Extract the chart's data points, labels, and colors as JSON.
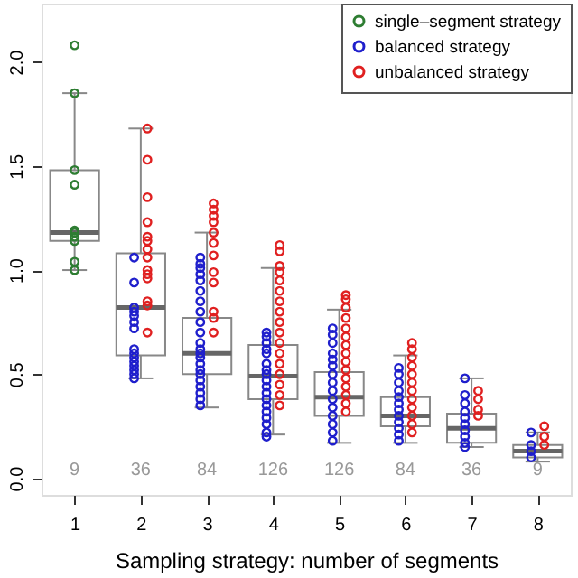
{
  "chart_data": {
    "type": "box",
    "xlabel": "Sampling strategy: number of segments",
    "xlim": [
      0.5,
      8.5
    ],
    "xticks": [
      1,
      2,
      3,
      4,
      5,
      6,
      7,
      8
    ],
    "ylim": [
      -0.08,
      2.28
    ],
    "yticks": [
      {
        "value": 0,
        "label": "0.0"
      },
      {
        "value": 0.5,
        "label": "0.5"
      },
      {
        "value": 1,
        "label": "1.0"
      },
      {
        "value": 1.5,
        "label": "1.5"
      },
      {
        "value": 2,
        "label": "2.0"
      }
    ],
    "x": [
      1,
      2,
      3,
      4,
      5,
      6,
      7,
      8
    ],
    "boxes": [
      {
        "low": 1.0,
        "q1": 1.14,
        "median": 1.18,
        "q3": 1.48,
        "high": 1.85
      },
      {
        "low": 0.48,
        "q1": 0.59,
        "median": 0.82,
        "q3": 1.08,
        "high": 1.68
      },
      {
        "low": 0.34,
        "q1": 0.5,
        "median": 0.6,
        "q3": 0.77,
        "high": 1.18
      },
      {
        "low": 0.21,
        "q1": 0.38,
        "median": 0.49,
        "q3": 0.64,
        "high": 1.01
      },
      {
        "low": 0.17,
        "q1": 0.3,
        "median": 0.39,
        "q3": 0.51,
        "high": 0.81
      },
      {
        "low": 0.17,
        "q1": 0.25,
        "median": 0.3,
        "q3": 0.39,
        "high": 0.59
      },
      {
        "low": 0.15,
        "q1": 0.17,
        "median": 0.24,
        "q3": 0.31,
        "high": 0.48
      },
      {
        "low": 0.08,
        "q1": 0.1,
        "median": 0.13,
        "q3": 0.16,
        "high": 0.22
      }
    ],
    "series": [
      {
        "name": "single–segment strategy",
        "type": "scatter",
        "color": "#2e7d32",
        "x": [
          1,
          1,
          1,
          1,
          1,
          1,
          1,
          1,
          1,
          1
        ],
        "values": [
          2.08,
          1.85,
          1.48,
          1.41,
          1.19,
          1.18,
          1.16,
          1.14,
          1.04,
          1.0
        ]
      },
      {
        "name": "balanced strategy",
        "type": "scatter",
        "color": "#1f1fcc",
        "x": [
          1.9,
          1.9,
          1.9,
          1.9,
          1.9,
          1.9,
          1.9,
          1.9,
          1.9,
          1.9,
          1.9,
          1.9,
          1.9,
          1.9,
          1.9,
          2.9,
          2.9,
          2.9,
          2.9,
          2.9,
          2.9,
          2.9,
          2.9,
          2.9,
          2.9,
          2.9,
          2.9,
          2.9,
          2.9,
          2.9,
          2.9,
          2.9,
          2.9,
          2.9,
          2.9,
          2.9,
          2.9,
          3.9,
          3.9,
          3.9,
          3.9,
          3.9,
          3.9,
          3.9,
          3.9,
          3.9,
          3.9,
          3.9,
          3.9,
          3.9,
          3.9,
          3.9,
          3.9,
          3.9,
          3.9,
          4.9,
          4.9,
          4.9,
          4.9,
          4.9,
          4.9,
          4.9,
          4.9,
          4.9,
          4.9,
          4.9,
          4.9,
          4.9,
          4.9,
          4.9,
          5.9,
          5.9,
          5.9,
          5.9,
          5.9,
          5.9,
          5.9,
          5.9,
          5.9,
          5.9,
          5.9,
          5.9,
          6.9,
          6.9,
          6.9,
          6.9,
          6.9,
          6.9,
          6.9,
          6.9,
          6.9,
          6.9,
          7.9,
          7.9,
          7.9,
          7.9
        ],
        "values": [
          1.06,
          0.94,
          0.82,
          0.8,
          0.78,
          0.75,
          0.72,
          0.62,
          0.6,
          0.58,
          0.56,
          0.54,
          0.52,
          0.5,
          0.48,
          1.06,
          1.03,
          1.01,
          0.98,
          0.95,
          0.9,
          0.85,
          0.8,
          0.75,
          0.7,
          0.65,
          0.62,
          0.6,
          0.58,
          0.55,
          0.52,
          0.5,
          0.47,
          0.44,
          0.41,
          0.38,
          0.35,
          0.7,
          0.68,
          0.65,
          0.62,
          0.6,
          0.55,
          0.52,
          0.5,
          0.47,
          0.44,
          0.41,
          0.38,
          0.35,
          0.32,
          0.29,
          0.26,
          0.22,
          0.2,
          0.72,
          0.69,
          0.65,
          0.6,
          0.57,
          0.54,
          0.5,
          0.46,
          0.42,
          0.38,
          0.34,
          0.3,
          0.26,
          0.22,
          0.18,
          0.53,
          0.5,
          0.46,
          0.42,
          0.39,
          0.36,
          0.33,
          0.3,
          0.27,
          0.24,
          0.21,
          0.18,
          0.48,
          0.4,
          0.36,
          0.32,
          0.29,
          0.26,
          0.23,
          0.2,
          0.17,
          0.15,
          0.22,
          0.16,
          0.13,
          0.1
        ]
      },
      {
        "name": "unbalanced strategy",
        "type": "scatter",
        "color": "#e02020",
        "x": [
          2.1,
          2.1,
          2.1,
          2.1,
          2.1,
          2.1,
          2.1,
          2.1,
          2.1,
          2.1,
          2.1,
          2.1,
          2.1,
          2.1,
          3.1,
          3.1,
          3.1,
          3.1,
          3.1,
          3.1,
          3.1,
          3.1,
          3.1,
          3.1,
          3.1,
          3.1,
          4.1,
          4.1,
          4.1,
          4.1,
          4.1,
          4.1,
          4.1,
          4.1,
          4.1,
          4.1,
          4.1,
          4.1,
          4.1,
          4.1,
          4.1,
          4.1,
          4.1,
          5.1,
          5.1,
          5.1,
          5.1,
          5.1,
          5.1,
          5.1,
          5.1,
          5.1,
          5.1,
          5.1,
          5.1,
          5.1,
          5.1,
          5.1,
          6.1,
          6.1,
          6.1,
          6.1,
          6.1,
          6.1,
          6.1,
          6.1,
          6.1,
          6.1,
          6.1,
          6.1,
          7.1,
          7.1,
          7.1,
          7.1,
          8.1,
          8.1,
          8.1
        ],
        "values": [
          1.68,
          1.53,
          1.35,
          1.23,
          1.16,
          1.14,
          1.1,
          1.06,
          1.0,
          0.98,
          0.96,
          0.85,
          0.83,
          0.7,
          1.32,
          1.29,
          1.26,
          1.23,
          1.18,
          1.13,
          1.07,
          0.99,
          0.94,
          0.8,
          0.77,
          0.7,
          1.12,
          1.09,
          1.02,
          0.99,
          0.95,
          0.9,
          0.85,
          0.8,
          0.75,
          0.7,
          0.65,
          0.6,
          0.55,
          0.5,
          0.45,
          0.4,
          0.35,
          0.88,
          0.86,
          0.82,
          0.77,
          0.72,
          0.68,
          0.64,
          0.6,
          0.56,
          0.52,
          0.48,
          0.44,
          0.4,
          0.36,
          0.32,
          0.65,
          0.62,
          0.58,
          0.54,
          0.5,
          0.46,
          0.42,
          0.38,
          0.34,
          0.3,
          0.26,
          0.22,
          0.42,
          0.38,
          0.33,
          0.3,
          0.25,
          0.2,
          0.16
        ]
      }
    ],
    "annotations": [
      "9",
      "36",
      "84",
      "126",
      "126",
      "84",
      "36",
      "9"
    ],
    "legend": "top right",
    "grid": false,
    "marker": "circle"
  }
}
